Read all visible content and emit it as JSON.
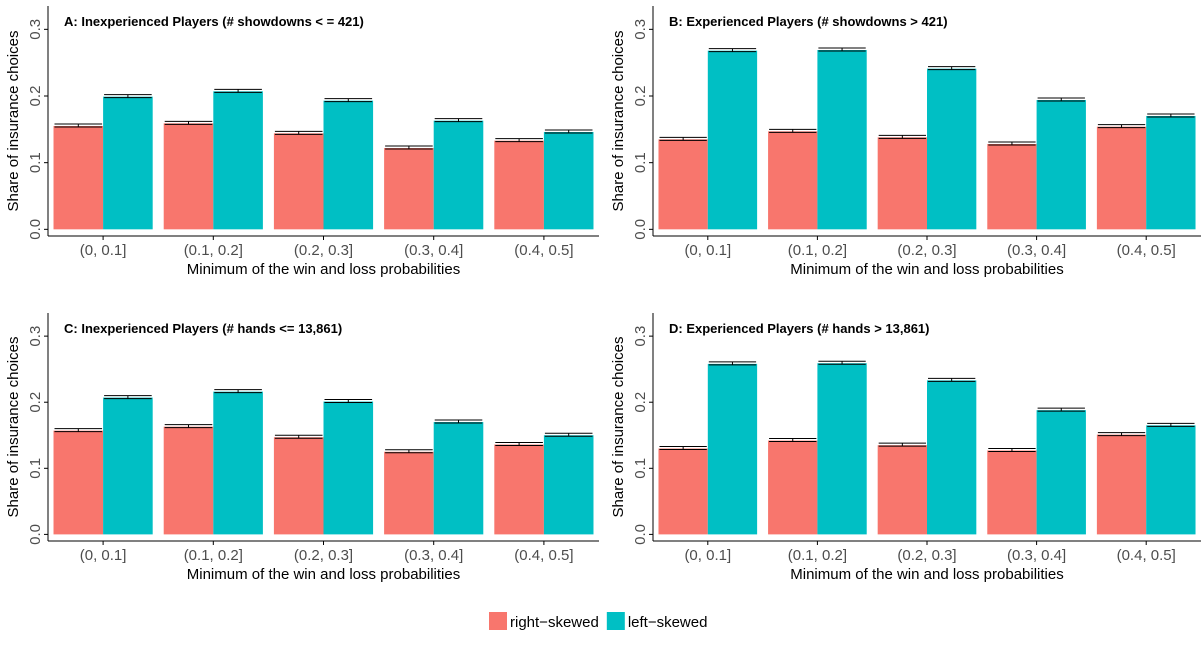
{
  "colors": {
    "right_skewed": "#F8766D",
    "left_skewed": "#00BFC4",
    "axis": "#000000",
    "tick_text": "#4d4d4d"
  },
  "legend": [
    {
      "label": "right−skewed",
      "color": "#F8766D"
    },
    {
      "label": "left−skewed",
      "color": "#00BFC4"
    }
  ],
  "chart_data": [
    {
      "type": "bar",
      "title": "A: Inexperienced Players (# showdowns < = 421)",
      "xlabel": "Minimum of the win and loss probabilities",
      "ylabel": "Share of insurance choices",
      "categories": [
        "(0, 0.1]",
        "(0.1, 0.2]",
        "(0.2, 0.3]",
        "(0.3, 0.4]",
        "(0.4, 0.5]"
      ],
      "yticks": [
        "0.0",
        "0.1",
        "0.2",
        "0.3"
      ],
      "ylim": [
        -0.01,
        0.335
      ],
      "series": [
        {
          "name": "right−skewed",
          "values": [
            0.155,
            0.159,
            0.144,
            0.122,
            0.133
          ]
        },
        {
          "name": "left−skewed",
          "values": [
            0.199,
            0.207,
            0.193,
            0.163,
            0.146
          ]
        }
      ]
    },
    {
      "type": "bar",
      "title": "B: Experienced Players (# showdowns > 421)",
      "xlabel": "Minimum of the win and loss probabilities",
      "ylabel": "Share of insurance choices",
      "categories": [
        "(0, 0.1]",
        "(0.1, 0.2]",
        "(0.2, 0.3]",
        "(0.3, 0.4]",
        "(0.4, 0.5]"
      ],
      "yticks": [
        "0.0",
        "0.1",
        "0.2",
        "0.3"
      ],
      "ylim": [
        -0.01,
        0.335
      ],
      "series": [
        {
          "name": "right−skewed",
          "values": [
            0.135,
            0.147,
            0.138,
            0.128,
            0.154
          ]
        },
        {
          "name": "left−skewed",
          "values": [
            0.268,
            0.269,
            0.241,
            0.194,
            0.17
          ]
        }
      ]
    },
    {
      "type": "bar",
      "title": "C: Inexperienced Players (# hands <= 13,861)",
      "xlabel": "Minimum of the win and loss probabilities",
      "ylabel": "Share of insurance choices",
      "categories": [
        "(0, 0.1]",
        "(0.1, 0.2]",
        "(0.2, 0.3]",
        "(0.3, 0.4]",
        "(0.4, 0.5]"
      ],
      "yticks": [
        "0.0",
        "0.1",
        "0.2",
        "0.3"
      ],
      "ylim": [
        -0.01,
        0.335
      ],
      "series": [
        {
          "name": "right−skewed",
          "values": [
            0.157,
            0.163,
            0.147,
            0.125,
            0.136
          ]
        },
        {
          "name": "left−skewed",
          "values": [
            0.207,
            0.216,
            0.201,
            0.17,
            0.15
          ]
        }
      ]
    },
    {
      "type": "bar",
      "title": "D: Experienced Players (# hands > 13,861)",
      "xlabel": "Minimum of the win and loss probabilities",
      "ylabel": "Share of insurance choices",
      "categories": [
        "(0, 0.1]",
        "(0.1, 0.2]",
        "(0.2, 0.3]",
        "(0.3, 0.4]",
        "(0.4, 0.5]"
      ],
      "yticks": [
        "0.0",
        "0.1",
        "0.2",
        "0.3"
      ],
      "ylim": [
        -0.01,
        0.335
      ],
      "series": [
        {
          "name": "right−skewed",
          "values": [
            0.13,
            0.142,
            0.135,
            0.127,
            0.151
          ]
        },
        {
          "name": "left−skewed",
          "values": [
            0.258,
            0.259,
            0.233,
            0.188,
            0.165
          ]
        }
      ]
    }
  ]
}
